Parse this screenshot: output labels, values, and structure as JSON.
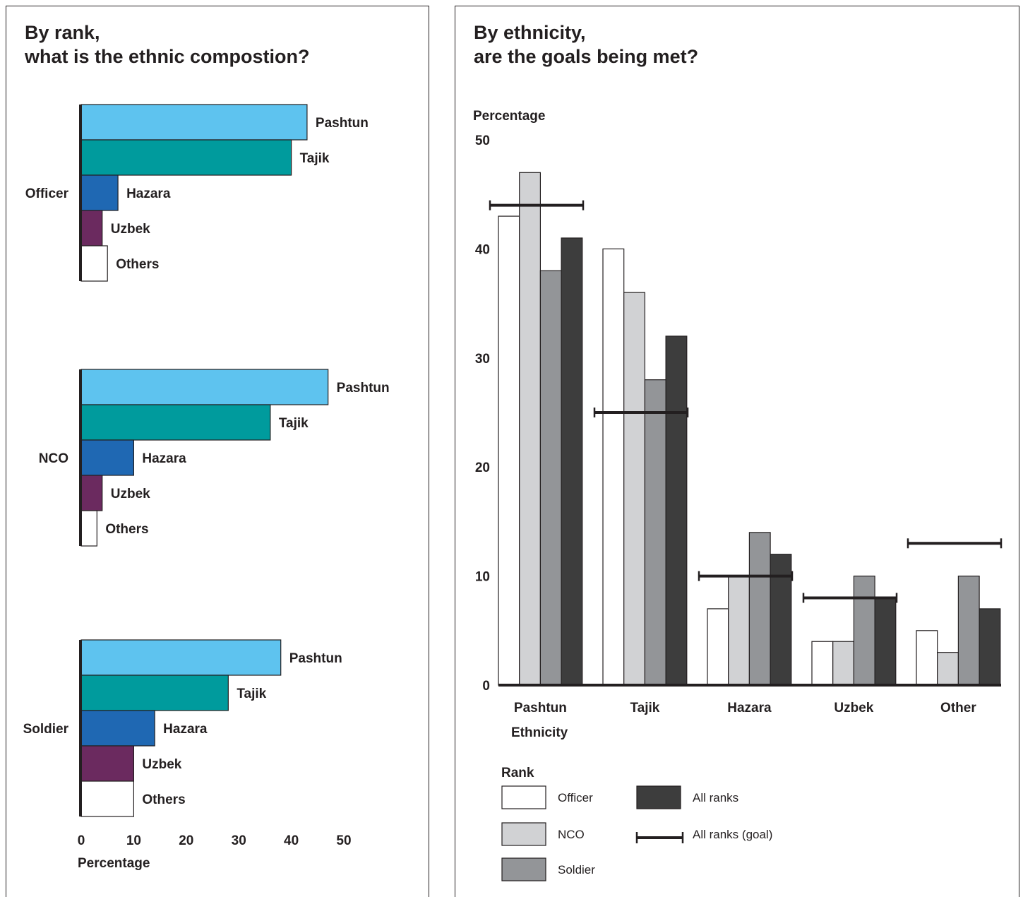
{
  "left": {
    "title_lines": [
      "By rank,",
      "what is the ethnic compostion?"
    ]
  },
  "right": {
    "title_lines": [
      "By ethnicity,",
      "are the goals being met?"
    ]
  },
  "chart_data": [
    {
      "type": "bar",
      "orientation": "horizontal",
      "title": "By rank, what is the ethnic compostion?",
      "groups": [
        "Officer",
        "NCO",
        "Soldier"
      ],
      "categories": [
        "Pashtun",
        "Tajik",
        "Hazara",
        "Uzbek",
        "Others"
      ],
      "colors": [
        "#5ec3ef",
        "#009b9d",
        "#1f68b3",
        "#6b2a5f",
        "#ffffff"
      ],
      "values": {
        "Officer": [
          43,
          40,
          7,
          4,
          5
        ],
        "NCO": [
          47,
          36,
          10,
          4,
          3
        ],
        "Soldier": [
          38,
          28,
          14,
          10,
          10
        ]
      },
      "xlabel": "Percentage",
      "xticks": [
        0,
        10,
        20,
        30,
        40,
        50
      ],
      "xlim": [
        0,
        50
      ]
    },
    {
      "type": "bar",
      "orientation": "vertical",
      "title": "By ethnicity, are the goals being met?",
      "categories": [
        "Pashtun",
        "Tajik",
        "Hazara",
        "Uzbek",
        "Other"
      ],
      "series": [
        {
          "name": "Officer",
          "color": "#ffffff",
          "values": [
            43,
            40,
            7,
            4,
            5
          ]
        },
        {
          "name": "NCO",
          "color": "#d1d2d4",
          "values": [
            47,
            36,
            10,
            4,
            3
          ]
        },
        {
          "name": "Soldier",
          "color": "#939598",
          "values": [
            38,
            28,
            14,
            10,
            10
          ]
        },
        {
          "name": "All ranks",
          "color": "#3d3d3d",
          "values": [
            41,
            32,
            12,
            8,
            7
          ]
        }
      ],
      "goal": {
        "name": "All ranks (goal)",
        "values": [
          44,
          25,
          10,
          8,
          13
        ]
      },
      "xlabel": "Ethnicity",
      "ylabel": "Percentage",
      "yticks": [
        0,
        10,
        20,
        30,
        40,
        50
      ],
      "ylim": [
        0,
        50
      ],
      "legend_title": "Rank",
      "legend_placement": "bottom-left"
    }
  ]
}
